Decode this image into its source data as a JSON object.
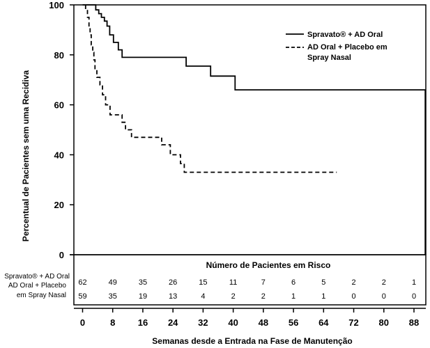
{
  "chart_data": {
    "type": "line",
    "subtype": "kaplan-meier step plot",
    "xlabel": "Semanas desde a Entrada na Fase de Manutenção",
    "ylabel": "Percentual de Pacientes sem uma Recidiva",
    "xlim": [
      -2,
      92
    ],
    "ylim": [
      0,
      100
    ],
    "x_ticks": [
      0,
      8,
      16,
      24,
      32,
      40,
      48,
      56,
      64,
      72,
      80,
      88
    ],
    "y_ticks": [
      0,
      20,
      40,
      60,
      80,
      100
    ],
    "grid": false,
    "legend_position": "top-right",
    "series": [
      {
        "name": "Spravato® + AD Oral",
        "line_style": "solid",
        "color": "#000000",
        "points": [
          [
            0,
            100
          ],
          [
            3.5,
            100
          ],
          [
            3.5,
            98
          ],
          [
            4.3,
            98
          ],
          [
            4.3,
            96.5
          ],
          [
            5,
            96.5
          ],
          [
            5,
            95
          ],
          [
            5.8,
            95
          ],
          [
            5.8,
            93.5
          ],
          [
            6.5,
            93.5
          ],
          [
            6.5,
            91.5
          ],
          [
            7.2,
            91.5
          ],
          [
            7.2,
            88
          ],
          [
            8.2,
            88
          ],
          [
            8.2,
            85
          ],
          [
            9.5,
            85
          ],
          [
            9.5,
            82
          ],
          [
            10.5,
            82
          ],
          [
            10.5,
            79
          ],
          [
            27.5,
            79
          ],
          [
            27.5,
            75.5
          ],
          [
            34,
            75.5
          ],
          [
            34,
            71.5
          ],
          [
            40.5,
            71.5
          ],
          [
            40.5,
            66
          ],
          [
            91,
            66
          ],
          [
            91,
            0
          ]
        ]
      },
      {
        "name": "AD Oral + Placebo em Spray Nasal",
        "line_style": "dashed",
        "color": "#000000",
        "points": [
          [
            0.8,
            100
          ],
          [
            0.8,
            98
          ],
          [
            1.3,
            98
          ],
          [
            1.3,
            95
          ],
          [
            1.7,
            95
          ],
          [
            1.7,
            91
          ],
          [
            2.0,
            91
          ],
          [
            2.0,
            88
          ],
          [
            2.3,
            88
          ],
          [
            2.3,
            84
          ],
          [
            2.7,
            84
          ],
          [
            2.7,
            81
          ],
          [
            3.0,
            81
          ],
          [
            3.0,
            78
          ],
          [
            3.3,
            78
          ],
          [
            3.3,
            74
          ],
          [
            3.8,
            74
          ],
          [
            3.8,
            71
          ],
          [
            4.6,
            71
          ],
          [
            4.6,
            68
          ],
          [
            5.3,
            68
          ],
          [
            5.3,
            64
          ],
          [
            6.1,
            64
          ],
          [
            6.1,
            60
          ],
          [
            7.3,
            60
          ],
          [
            7.3,
            56
          ],
          [
            10.5,
            56
          ],
          [
            10.5,
            53
          ],
          [
            11.4,
            53
          ],
          [
            11.4,
            50
          ],
          [
            13.0,
            50
          ],
          [
            13.0,
            47
          ],
          [
            21.0,
            47
          ],
          [
            21.0,
            44
          ],
          [
            23.3,
            44
          ],
          [
            23.3,
            40
          ],
          [
            26.0,
            40
          ],
          [
            26.0,
            36.5
          ],
          [
            27.0,
            36.5
          ],
          [
            27.0,
            33
          ],
          [
            67.5,
            33
          ]
        ]
      }
    ],
    "risk_table": {
      "title": "Número de Pacientes em Risco",
      "times": [
        0,
        8,
        16,
        24,
        32,
        40,
        48,
        56,
        64,
        72,
        80,
        88
      ],
      "rows": [
        {
          "label": "Spravato® + AD Oral",
          "values": [
            "62",
            "49",
            "35",
            "26",
            "15",
            "11",
            "7",
            "6",
            "5",
            "2",
            "2",
            "1"
          ]
        },
        {
          "label_lines": [
            "AD Oral + Placebo",
            "em Spray Nasal"
          ],
          "values": [
            "59",
            "35",
            "19",
            "13",
            "4",
            "2",
            "2",
            "1",
            "1",
            "0",
            "0",
            "0"
          ]
        }
      ]
    }
  }
}
